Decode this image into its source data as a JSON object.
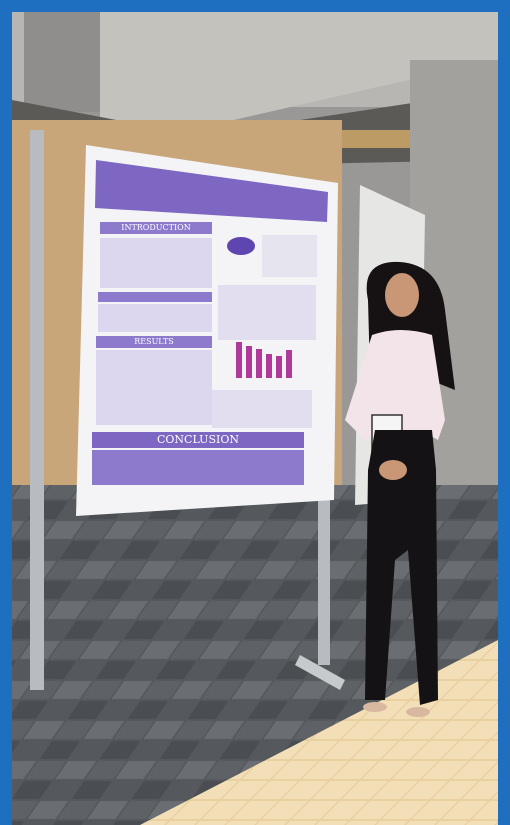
{
  "poster": {
    "sections": [
      "INTRODUCTION",
      "RESULTS",
      "CONCLUSION"
    ]
  }
}
